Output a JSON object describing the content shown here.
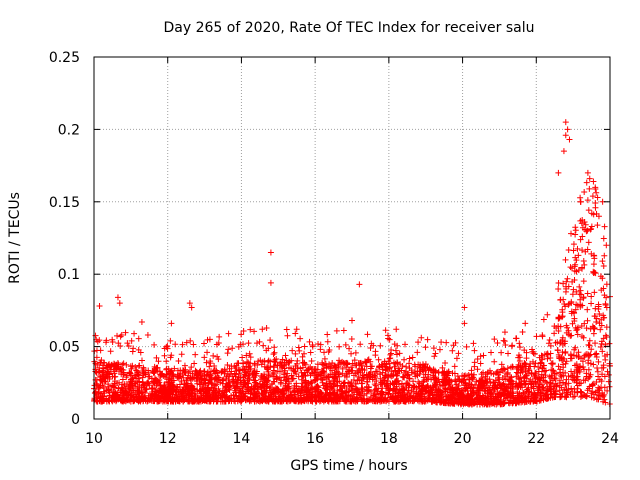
{
  "chart_data": {
    "type": "scatter",
    "title": "Day 265 of 2020, Rate Of TEC Index for receiver salu",
    "xlabel": "GPS time / hours",
    "ylabel": "ROTI / TECUs",
    "xlim": [
      10,
      24
    ],
    "ylim": [
      0,
      0.25
    ],
    "xticks": [
      10,
      12,
      14,
      16,
      18,
      20,
      22,
      24
    ],
    "xtick_labels": [
      "10",
      "12",
      "14",
      "16",
      "18",
      "20",
      "22",
      "24"
    ],
    "yticks": [
      0,
      0.05,
      0.1,
      0.15,
      0.2,
      0.25
    ],
    "ytick_labels": [
      "0",
      "0.05",
      "0.1",
      "0.15",
      "0.2",
      "0.25"
    ],
    "grid": true,
    "marker": "+",
    "color": "#ff0000",
    "series": [
      {
        "name": "ROTI",
        "baseline_envelope": [
          {
            "x": 10.0,
            "low": 0.012,
            "high": 0.04
          },
          {
            "x": 11.0,
            "low": 0.012,
            "high": 0.038
          },
          {
            "x": 12.0,
            "low": 0.012,
            "high": 0.035
          },
          {
            "x": 13.0,
            "low": 0.012,
            "high": 0.033
          },
          {
            "x": 14.0,
            "low": 0.012,
            "high": 0.04
          },
          {
            "x": 15.0,
            "low": 0.012,
            "high": 0.042
          },
          {
            "x": 16.0,
            "low": 0.012,
            "high": 0.038
          },
          {
            "x": 17.0,
            "low": 0.012,
            "high": 0.04
          },
          {
            "x": 18.0,
            "low": 0.012,
            "high": 0.04
          },
          {
            "x": 19.0,
            "low": 0.012,
            "high": 0.038
          },
          {
            "x": 20.0,
            "low": 0.01,
            "high": 0.03
          },
          {
            "x": 21.0,
            "low": 0.01,
            "high": 0.035
          },
          {
            "x": 22.0,
            "low": 0.012,
            "high": 0.04
          },
          {
            "x": 22.5,
            "low": 0.015,
            "high": 0.06
          },
          {
            "x": 23.0,
            "low": 0.015,
            "high": 0.12
          },
          {
            "x": 23.5,
            "low": 0.015,
            "high": 0.15
          },
          {
            "x": 24.0,
            "low": 0.01,
            "high": 0.1
          }
        ],
        "notable_points": [
          {
            "x": 10.15,
            "y": 0.078
          },
          {
            "x": 10.65,
            "y": 0.084
          },
          {
            "x": 10.7,
            "y": 0.08
          },
          {
            "x": 11.3,
            "y": 0.067
          },
          {
            "x": 12.1,
            "y": 0.066
          },
          {
            "x": 12.6,
            "y": 0.08
          },
          {
            "x": 12.65,
            "y": 0.077
          },
          {
            "x": 14.8,
            "y": 0.115
          },
          {
            "x": 14.8,
            "y": 0.094
          },
          {
            "x": 15.5,
            "y": 0.062
          },
          {
            "x": 17.2,
            "y": 0.093
          },
          {
            "x": 17.0,
            "y": 0.068
          },
          {
            "x": 18.2,
            "y": 0.062
          },
          {
            "x": 20.05,
            "y": 0.077
          },
          {
            "x": 20.05,
            "y": 0.066
          },
          {
            "x": 21.15,
            "y": 0.06
          },
          {
            "x": 21.7,
            "y": 0.066
          },
          {
            "x": 22.3,
            "y": 0.072
          },
          {
            "x": 22.8,
            "y": 0.205
          },
          {
            "x": 22.85,
            "y": 0.2
          },
          {
            "x": 22.8,
            "y": 0.196
          },
          {
            "x": 22.9,
            "y": 0.193
          },
          {
            "x": 22.75,
            "y": 0.185
          },
          {
            "x": 22.6,
            "y": 0.17
          },
          {
            "x": 23.4,
            "y": 0.17
          },
          {
            "x": 23.45,
            "y": 0.166
          },
          {
            "x": 23.6,
            "y": 0.16
          },
          {
            "x": 23.2,
            "y": 0.15
          },
          {
            "x": 23.8,
            "y": 0.15
          },
          {
            "x": 23.7,
            "y": 0.14
          },
          {
            "x": 23.9,
            "y": 0.12
          }
        ]
      }
    ]
  }
}
